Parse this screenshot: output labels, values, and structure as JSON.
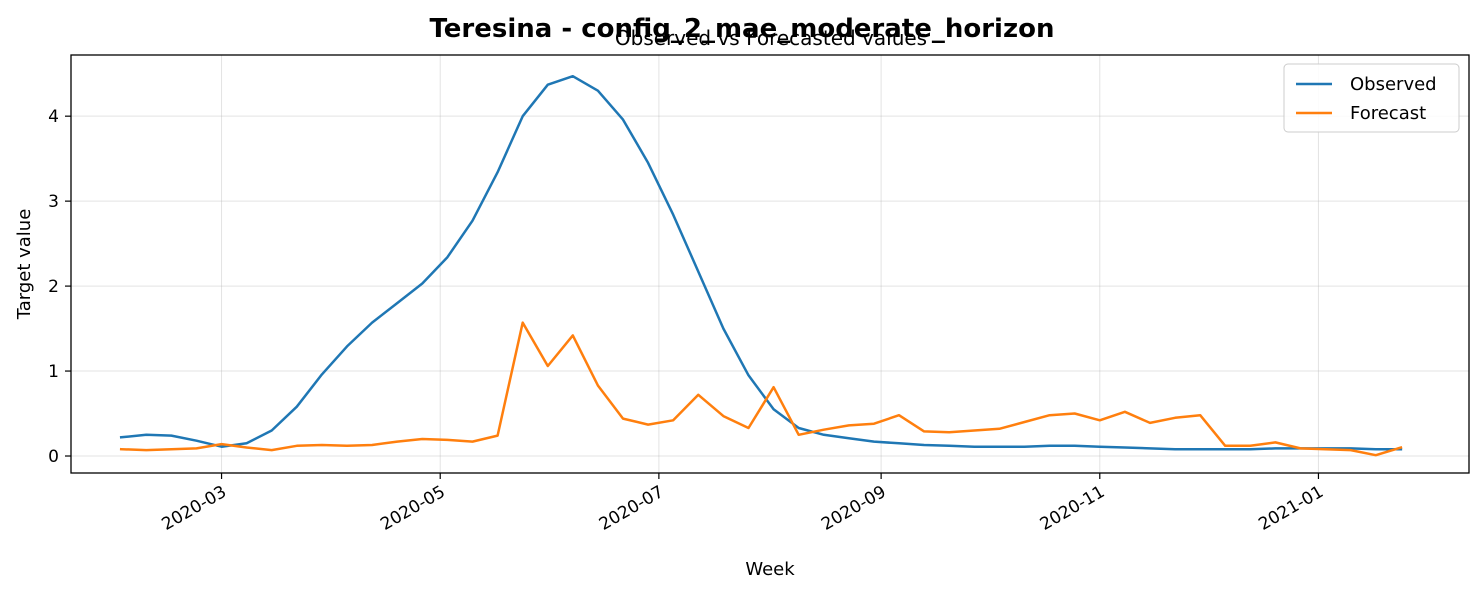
{
  "chart_data": {
    "type": "line",
    "suptitle": "Teresina - config_2_mae_moderate_horizon",
    "title": "Observed vs Forecasted values",
    "xlabel": "Week",
    "ylabel": "Target value",
    "x_axis": {
      "type": "date",
      "range": [
        "2020-01-19",
        "2021-02-12"
      ]
    },
    "ylim": [
      -0.2,
      4.72
    ],
    "xticks": [
      "2020-03-01",
      "2020-05-01",
      "2020-07-01",
      "2020-09-01",
      "2020-11-01",
      "2021-01-01"
    ],
    "xtick_labels": [
      "2020-03",
      "2020-05",
      "2020-07",
      "2020-09",
      "2020-11",
      "2021-01"
    ],
    "yticks": [
      0,
      1,
      2,
      3,
      4
    ],
    "grid": true,
    "legend_position": "top-right",
    "x": [
      "2020-02-02",
      "2020-02-09",
      "2020-02-16",
      "2020-02-23",
      "2020-03-01",
      "2020-03-08",
      "2020-03-15",
      "2020-03-22",
      "2020-03-29",
      "2020-04-05",
      "2020-04-12",
      "2020-04-19",
      "2020-04-26",
      "2020-05-03",
      "2020-05-10",
      "2020-05-17",
      "2020-05-24",
      "2020-05-31",
      "2020-06-07",
      "2020-06-14",
      "2020-06-21",
      "2020-06-28",
      "2020-07-05",
      "2020-07-12",
      "2020-07-19",
      "2020-07-26",
      "2020-08-02",
      "2020-08-09",
      "2020-08-16",
      "2020-08-23",
      "2020-08-30",
      "2020-09-06",
      "2020-09-13",
      "2020-09-20",
      "2020-09-27",
      "2020-10-04",
      "2020-10-11",
      "2020-10-18",
      "2020-10-25",
      "2020-11-01",
      "2020-11-08",
      "2020-11-15",
      "2020-11-22",
      "2020-11-29",
      "2020-12-06",
      "2020-12-13",
      "2020-12-20",
      "2020-12-27",
      "2021-01-03",
      "2021-01-10",
      "2021-01-17",
      "2021-01-24"
    ],
    "series": [
      {
        "name": "Observed",
        "color": "#1f77b4",
        "values": [
          0.22,
          0.25,
          0.24,
          0.18,
          0.11,
          0.15,
          0.3,
          0.58,
          0.96,
          1.29,
          1.57,
          1.8,
          2.03,
          2.34,
          2.77,
          3.34,
          4.0,
          4.37,
          4.47,
          4.3,
          3.96,
          3.45,
          2.84,
          2.17,
          1.5,
          0.95,
          0.55,
          0.33,
          0.25,
          0.21,
          0.17,
          0.15,
          0.13,
          0.12,
          0.11,
          0.11,
          0.11,
          0.12,
          0.12,
          0.11,
          0.1,
          0.09,
          0.08,
          0.08,
          0.08,
          0.08,
          0.09,
          0.09,
          0.09,
          0.09,
          0.08,
          0.08
        ]
      },
      {
        "name": "Forecast",
        "color": "#ff7f0e",
        "values": [
          0.08,
          0.07,
          0.08,
          0.09,
          0.14,
          0.1,
          0.07,
          0.12,
          0.13,
          0.12,
          0.13,
          0.17,
          0.2,
          0.19,
          0.17,
          0.24,
          1.57,
          1.06,
          1.42,
          0.83,
          0.44,
          0.37,
          0.42,
          0.72,
          0.47,
          0.33,
          0.81,
          0.25,
          0.31,
          0.36,
          0.38,
          0.48,
          0.29,
          0.28,
          0.3,
          0.32,
          0.4,
          0.48,
          0.5,
          0.42,
          0.52,
          0.39,
          0.45,
          0.48,
          0.12,
          0.12,
          0.16,
          0.09,
          0.08,
          0.07,
          0.01,
          0.1
        ]
      }
    ]
  }
}
